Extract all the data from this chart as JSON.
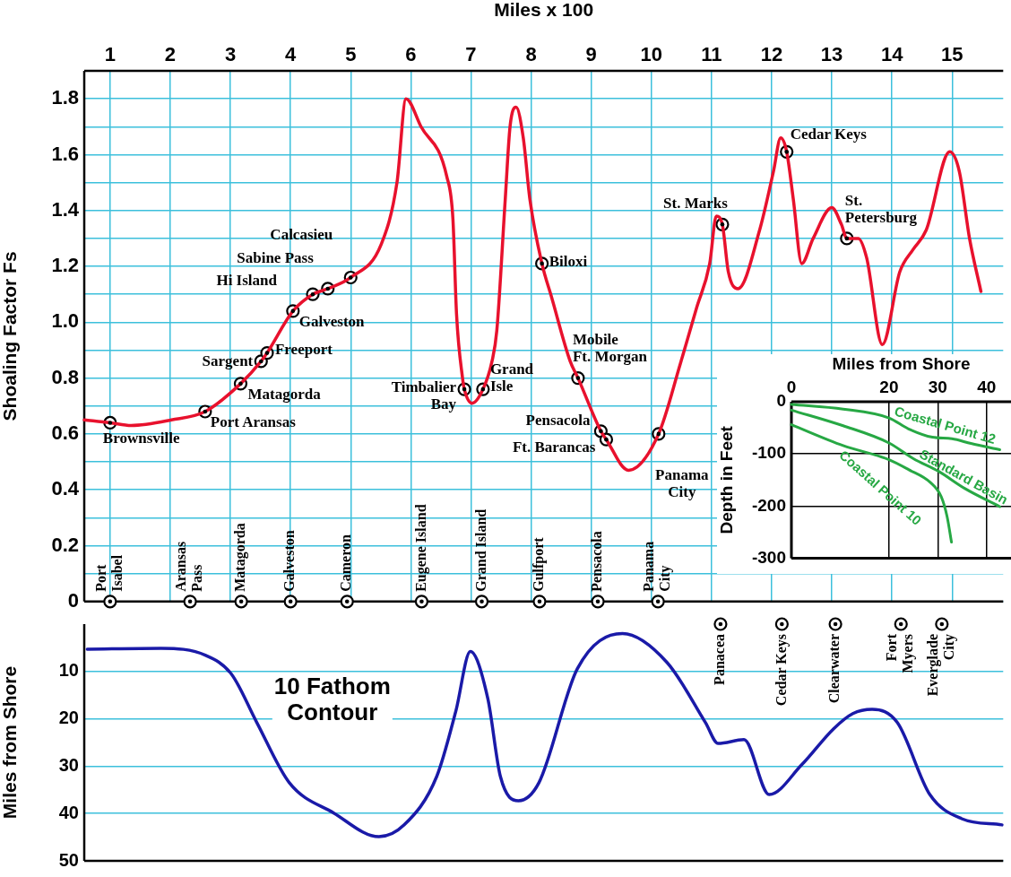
{
  "chart_data": [
    {
      "type": "line",
      "xlabel": "Miles x 100",
      "ylabel": "Shoaling Factor Fs",
      "xlim": [
        0.57,
        15.85
      ],
      "xticks": [
        1,
        2,
        3,
        4,
        5,
        6,
        7,
        8,
        9,
        10,
        11,
        12,
        13,
        14,
        15
      ],
      "ylim": [
        0,
        1.9
      ],
      "yticks": [
        0,
        {
          "value": 0.1,
          "label": null
        },
        0.2,
        {
          "value": 0.3,
          "label": null
        },
        0.4,
        {
          "value": 0.5,
          "label": null
        },
        0.6,
        {
          "value": 0.7,
          "label": null
        },
        0.8,
        {
          "value": 0.9,
          "label": null
        },
        {
          "value": 1,
          "label": "1.0"
        },
        {
          "value": 1.1,
          "label": null
        },
        1.2,
        {
          "value": 1.3,
          "label": null
        },
        1.4,
        {
          "value": 1.5,
          "label": null
        },
        1.6,
        {
          "value": 1.7,
          "label": null
        },
        1.8
      ],
      "grid": true,
      "series": [
        {
          "color": "#e8112d",
          "x": [
            0.57,
            1.0,
            1.35,
            2.02,
            2.58,
            3.17,
            3.51,
            3.61,
            4.04,
            4.37,
            4.62,
            5.0,
            5.51,
            5.77,
            5.92,
            6.17,
            6.6,
            6.7,
            6.76,
            6.86,
            6.89,
            7.02,
            7.2,
            7.35,
            7.43,
            7.57,
            7.65,
            7.75,
            7.87,
            7.98,
            8.18,
            8.34,
            8.65,
            8.78,
            9.16,
            9.25,
            9.62,
            10.12,
            10.48,
            10.75,
            10.97,
            11.08,
            11.18,
            11.28,
            11.44,
            11.8,
            12.03,
            12.15,
            12.25,
            12.36,
            12.5,
            12.69,
            13.0,
            13.16,
            13.25,
            13.44,
            13.58,
            13.84,
            14.13,
            14.35,
            14.57,
            14.96,
            15.12,
            15.29,
            15.48
          ],
          "values": [
            0.65,
            0.64,
            0.63,
            0.65,
            0.68,
            0.78,
            0.86,
            0.89,
            1.04,
            1.1,
            1.12,
            1.16,
            1.28,
            1.5,
            1.8,
            1.7,
            1.52,
            1.37,
            1.03,
            0.8,
            0.76,
            0.71,
            0.76,
            0.86,
            0.97,
            1.44,
            1.7,
            1.77,
            1.66,
            1.44,
            1.21,
            1.09,
            0.86,
            0.8,
            0.61,
            0.58,
            0.47,
            0.6,
            0.85,
            1.05,
            1.21,
            1.38,
            1.35,
            1.18,
            1.12,
            1.33,
            1.54,
            1.66,
            1.61,
            1.44,
            1.21,
            1.3,
            1.41,
            1.35,
            1.3,
            1.3,
            1.23,
            0.92,
            1.18,
            1.26,
            1.33,
            1.61,
            1.54,
            1.3,
            1.11
          ]
        },
        {
          "type": "scatter",
          "color": "#000000",
          "marker": "circle",
          "x": [
            1.0,
            2.58,
            3.17,
            3.51,
            3.61,
            4.04,
            4.37,
            4.62,
            5.0,
            6.89,
            7.2,
            8.18,
            8.78,
            9.16,
            9.25,
            10.12,
            11.18,
            12.25,
            13.25
          ],
          "values": [
            0.64,
            0.68,
            0.78,
            0.86,
            0.89,
            1.04,
            1.1,
            1.12,
            1.16,
            0.76,
            0.76,
            1.21,
            0.8,
            0.61,
            0.58,
            0.6,
            1.35,
            1.61,
            1.3
          ]
        },
        {
          "type": "scatter",
          "color": "#000000",
          "marker": "circle",
          "x": [
            1.0,
            2.33,
            3.18,
            4.0,
            4.94,
            6.18,
            7.18,
            8.14,
            9.11,
            10.11
          ],
          "values": [
            0,
            0,
            0,
            0,
            0,
            0,
            0,
            0,
            0,
            0
          ]
        }
      ],
      "annotations": [
        {
          "text": "Brownsville",
          "x": 1.0,
          "y": 0.64
        },
        {
          "text": "Port Aransas",
          "x": 2.58,
          "y": 0.68
        },
        {
          "text": "Matagorda",
          "x": 3.17,
          "y": 0.78
        },
        {
          "text": "Sargent",
          "x": 3.51,
          "y": 0.86
        },
        {
          "text": "Freeport",
          "x": 3.61,
          "y": 0.89
        },
        {
          "text": "Galveston",
          "x": 4.04,
          "y": 1.04
        },
        {
          "text": "Hi Island",
          "x": 4.37,
          "y": 1.1
        },
        {
          "text": "Sabine Pass",
          "x": 4.62,
          "y": 1.12
        },
        {
          "text": "Calcasieu",
          "x": 5.0,
          "y": 1.16
        },
        {
          "text": "Timbalier\nBay",
          "x": 6.89,
          "y": 0.76
        },
        {
          "text": "Grand\nIsle",
          "x": 7.2,
          "y": 0.76
        },
        {
          "text": "Biloxi",
          "x": 8.18,
          "y": 1.21
        },
        {
          "text": "Mobile\nFt. Morgan",
          "x": 8.78,
          "y": 0.8
        },
        {
          "text": "Pensacola",
          "x": 9.16,
          "y": 0.61
        },
        {
          "text": "Ft. Barancas",
          "x": 9.25,
          "y": 0.58
        },
        {
          "text": "Panama\nCity",
          "x": 10.12,
          "y": 0.6
        },
        {
          "text": "St. Marks",
          "x": 11.18,
          "y": 1.35
        },
        {
          "text": "Cedar Keys",
          "x": 12.25,
          "y": 1.61
        },
        {
          "text": "St.\nPetersburg",
          "x": 13.25,
          "y": 1.3
        },
        {
          "text": "Port\nIsabel",
          "x": 1.0,
          "y": 0
        },
        {
          "text": "Aransas\nPass",
          "x": 2.33,
          "y": 0
        },
        {
          "text": "Matagorda",
          "x": 3.18,
          "y": 0
        },
        {
          "text": "Galveston",
          "x": 4.0,
          "y": 0
        },
        {
          "text": "Cameron",
          "x": 4.94,
          "y": 0
        },
        {
          "text": "Eugene Island",
          "x": 6.18,
          "y": 0
        },
        {
          "text": "Grand Island",
          "x": 7.18,
          "y": 0
        },
        {
          "text": "Gulfport",
          "x": 8.14,
          "y": 0
        },
        {
          "text": "Pensacola",
          "x": 9.11,
          "y": 0
        },
        {
          "text": "Panama\nCity",
          "x": 10.11,
          "y": 0
        }
      ]
    },
    {
      "type": "line",
      "ylabel": "Miles from Shore",
      "xlim": [
        0.57,
        15.85
      ],
      "xticks": [
        1,
        2,
        3,
        4,
        5,
        6,
        7,
        8,
        9,
        10,
        11,
        12,
        13,
        14,
        15
      ],
      "ylim": [
        50,
        0
      ],
      "yticks": [
        10,
        20,
        30,
        40,
        50
      ],
      "grid": "y",
      "tick_labels": "y",
      "series": [
        {
          "color": "#1a1aa8",
          "x": [
            0.62,
            1.85,
            2.59,
            3.02,
            3.44,
            3.98,
            4.72,
            5.47,
            5.89,
            6.43,
            6.75,
            6.99,
            7.28,
            7.49,
            7.79,
            8.13,
            8.77,
            9.52,
            10.26,
            10.9,
            11.11,
            11.54,
            11.96,
            12.5,
            13.03,
            13.35,
            13.67,
            14.09,
            14.63,
            15.16,
            15.83
          ],
          "values": [
            5.3,
            5.1,
            6.6,
            10.6,
            20.8,
            33.5,
            39.9,
            44.9,
            42.4,
            32.2,
            18.3,
            5.8,
            15.7,
            32.2,
            37.3,
            33.5,
            9.4,
            2,
            8.1,
            20.8,
            25.2,
            24.4,
            36,
            29.7,
            22.1,
            18.9,
            18,
            20.8,
            36,
            41.1,
            42.4
          ]
        },
        {
          "type": "scatter",
          "color": "#000000",
          "marker": "circle",
          "x": [
            11.15,
            12.17,
            13.06,
            14.15,
            14.83
          ],
          "values": [
            0,
            0,
            0,
            0,
            0
          ]
        }
      ],
      "annotations": [
        "10 Fathom\nContour",
        {
          "text": "Panacea",
          "x": 11.15,
          "y": 0
        },
        {
          "text": "Cedar Keys",
          "x": 12.17,
          "y": 0
        },
        {
          "text": "Clearwater",
          "x": 13.06,
          "y": 0
        },
        {
          "text": "Fort\nMyers",
          "x": 14.15,
          "y": 0
        },
        {
          "text": "Everglade\nCity",
          "x": 14.83,
          "y": 0
        }
      ]
    },
    {
      "type": "line",
      "xlabel": "Miles from Shore",
      "ylabel": "Depth in Feet",
      "xlim": [
        0,
        45
      ],
      "xticks": [
        0,
        20,
        30,
        40
      ],
      "ylim": [
        -300,
        0
      ],
      "yticks": [
        -300,
        -200,
        -100,
        0
      ],
      "grid": true,
      "series": [
        {
          "name": "Coastal Point 12",
          "color": "#27a844",
          "x": [
            0,
            10.6,
            20,
            24,
            28.9,
            32.9,
            36.8,
            42.7
          ],
          "values": [
            -5,
            -14,
            -31,
            -52,
            -68,
            -71,
            -80,
            -92
          ]
        },
        {
          "name": "Standard Basin",
          "color": "#27a844",
          "x": [
            0,
            10.6,
            20,
            25,
            30.1,
            35.5,
            42.7
          ],
          "values": [
            -16,
            -46,
            -79,
            -109,
            -133,
            -166,
            -201
          ]
        },
        {
          "name": "Coastal Point 10",
          "color": "#27a844",
          "x": [
            0,
            10.6,
            20,
            24,
            28.5,
            30.7,
            31.9,
            32.8
          ],
          "values": [
            -44,
            -84,
            -111,
            -130,
            -155,
            -182,
            -220,
            -269
          ]
        }
      ]
    }
  ]
}
